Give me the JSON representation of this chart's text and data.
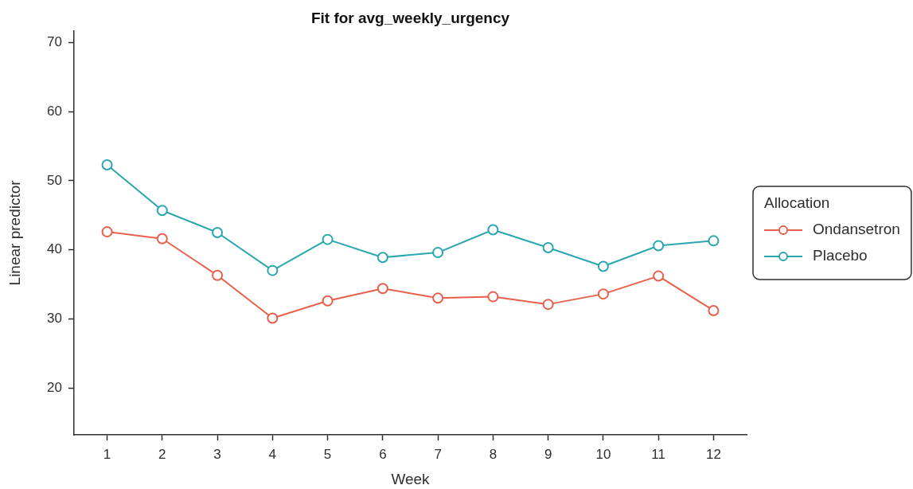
{
  "chart_data": {
    "type": "line",
    "title": "Fit for avg_weekly_urgency",
    "xlabel": "Week",
    "ylabel": "Linear predictor",
    "legend_title": "Allocation",
    "x": [
      1,
      2,
      3,
      4,
      5,
      6,
      7,
      8,
      9,
      10,
      11,
      12
    ],
    "series": [
      {
        "name": "Ondansetron",
        "color": "#e8604c",
        "values": [
          42.6,
          41.6,
          36.3,
          30.1,
          32.6,
          34.4,
          33.0,
          33.2,
          32.1,
          33.6,
          36.2,
          31.2
        ]
      },
      {
        "name": "Placebo",
        "color": "#2aa6ae",
        "values": [
          52.3,
          45.7,
          42.5,
          37.0,
          41.5,
          38.9,
          39.6,
          42.9,
          40.3,
          37.6,
          40.6,
          41.3
        ]
      }
    ],
    "xlim": [
      0.4,
      12.6
    ],
    "xticks": [
      1,
      2,
      3,
      4,
      5,
      6,
      7,
      8,
      9,
      10,
      11,
      12
    ],
    "ylim": [
      13.2,
      71.7
    ],
    "yticks": [
      20,
      30,
      40,
      50,
      60,
      70
    ],
    "legend": "right",
    "marker": "circle",
    "line_style": "solid"
  }
}
